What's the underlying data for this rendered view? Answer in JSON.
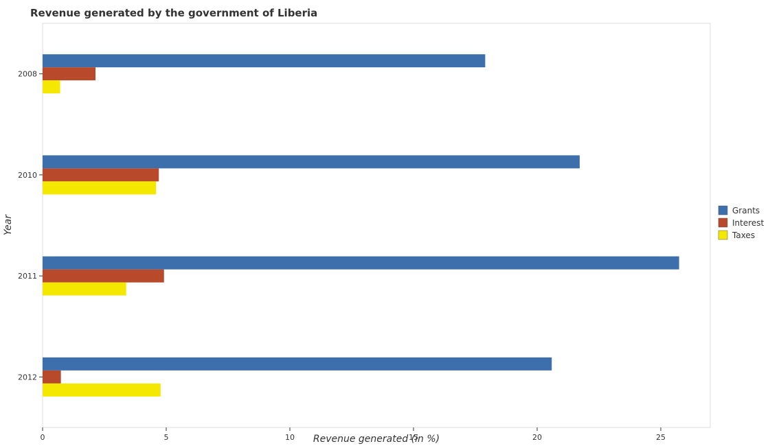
{
  "chart_data": {
    "type": "bar",
    "orientation": "horizontal",
    "title": "Revenue generated by the government of Liberia",
    "xlabel": "Revenue generated (in %)",
    "ylabel": "Year",
    "xlim": [
      0,
      27
    ],
    "xticks": [
      0,
      5,
      10,
      15,
      20,
      25
    ],
    "categories": [
      "2008",
      "2010",
      "2011",
      "2012"
    ],
    "series": [
      {
        "name": "Grants",
        "color": "#3d6fad",
        "values": [
          17.9,
          21.72,
          25.74,
          20.59
        ]
      },
      {
        "name": "Interest",
        "color": "#b84a2b",
        "values": [
          2.14,
          4.7,
          4.91,
          0.74
        ]
      },
      {
        "name": "Taxes",
        "color": "#f5e800",
        "values": [
          0.71,
          4.59,
          3.38,
          4.77
        ]
      }
    ],
    "legend_position": "right",
    "grid": false
  }
}
